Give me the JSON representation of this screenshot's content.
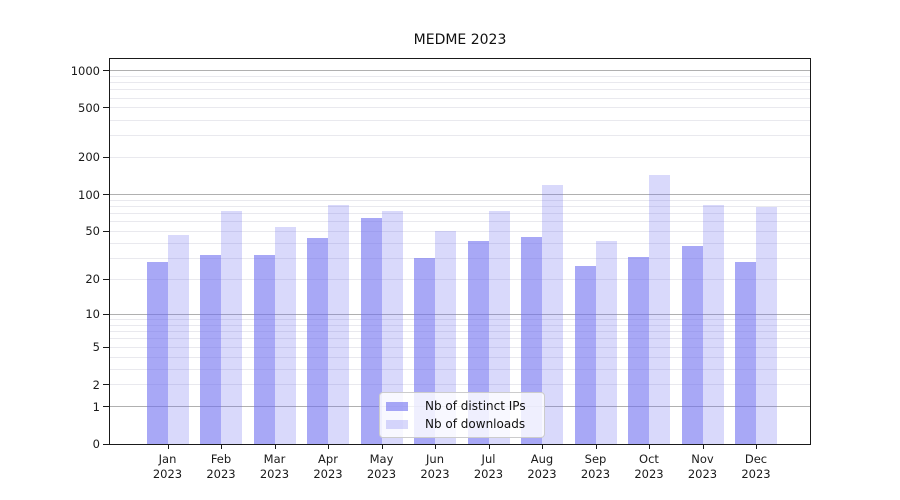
{
  "title": "MEDME 2023",
  "colors": {
    "bar_base": "#6E6EF0",
    "bar_dark_rgba": "rgba(110,110,240,0.60)",
    "bar_light_rgba": "rgba(110,110,240,0.26)",
    "bar_dark_flat": "#a8a8f8",
    "bar_light_flat": "#d9d9fa",
    "grid_major": "#b0b0b0",
    "grid_minor": "#e9e9ee",
    "spine": "#1a1a1a",
    "background": "#ffffff"
  },
  "legend": {
    "position": "lower center",
    "items": [
      {
        "label": "Nb of distinct IPs",
        "series_key": "ips"
      },
      {
        "label": "Nb of downloads",
        "series_key": "downloads"
      }
    ]
  },
  "x_axis": {
    "year_label": "2023",
    "months": [
      "Jan",
      "Feb",
      "Mar",
      "Apr",
      "May",
      "Jun",
      "Jul",
      "Aug",
      "Sep",
      "Oct",
      "Nov",
      "Dec"
    ]
  },
  "y_axis": {
    "scale": "symlog",
    "tick_values": [
      0,
      1,
      2,
      5,
      10,
      20,
      50,
      100,
      200,
      500,
      1000
    ]
  },
  "chart_data": {
    "type": "bar",
    "title": "MEDME 2023",
    "categories": [
      "Jan 2023",
      "Feb 2023",
      "Mar 2023",
      "Apr 2023",
      "May 2023",
      "Jun 2023",
      "Jul 2023",
      "Aug 2023",
      "Sep 2023",
      "Oct 2023",
      "Nov 2023",
      "Dec 2023"
    ],
    "series": [
      {
        "name": "Nb of distinct IPs",
        "values": [
          28,
          32,
          32,
          44,
          64,
          30,
          42,
          45,
          26,
          31,
          38,
          28
        ]
      },
      {
        "name": "Nb of downloads",
        "values": [
          47,
          73,
          54,
          82,
          73,
          50,
          73,
          120,
          42,
          145,
          82,
          79
        ]
      }
    ],
    "xlabel": "",
    "ylabel": "",
    "yscale": "log1p",
    "ylim": [
      0,
      1200
    ],
    "y_ticks": [
      0,
      1,
      2,
      5,
      10,
      20,
      50,
      100,
      200,
      500,
      1000
    ],
    "grid": "horizontal, major at powers of 10, faint minors",
    "legend_position": "lower center"
  }
}
